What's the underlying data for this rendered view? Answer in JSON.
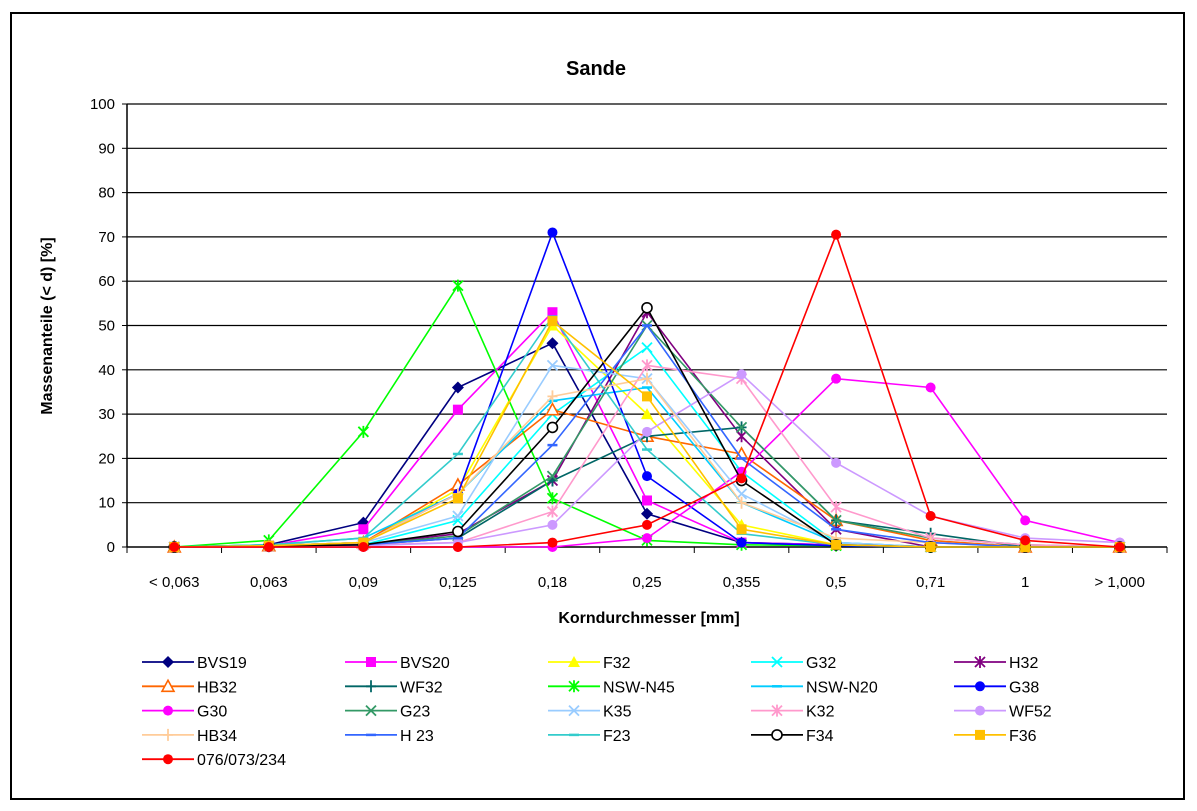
{
  "chart_data": {
    "type": "line",
    "title": "Sande",
    "xlabel": "Korndurchmesser [mm]",
    "ylabel": "Massenanteile (< d) [%]",
    "categories": [
      "< 0,063",
      "0,063",
      "0,09",
      "0,125",
      "0,18",
      "0,25",
      "0,355",
      "0,5",
      "0,71",
      "1",
      "> 1,000"
    ],
    "ylim": [
      0,
      100
    ],
    "yticks": [
      0,
      10,
      20,
      30,
      40,
      50,
      60,
      70,
      80,
      90,
      100
    ],
    "grid": "horizontal",
    "legend_position": "bottom",
    "series": [
      {
        "name": "BVS19",
        "color": "#000080",
        "marker": "diamond",
        "values": [
          0,
          0.5,
          5.5,
          36,
          46,
          7.5,
          1,
          0.5,
          0,
          0,
          0
        ]
      },
      {
        "name": "BVS20",
        "color": "#FF00FF",
        "marker": "square",
        "values": [
          0,
          0.3,
          4,
          31,
          53,
          10.5,
          1,
          0.5,
          0,
          0,
          0
        ]
      },
      {
        "name": "F32",
        "color": "#FFFF00",
        "marker": "triangle",
        "values": [
          0,
          0.3,
          1,
          13,
          50,
          30,
          5,
          0.5,
          0,
          0,
          0
        ]
      },
      {
        "name": "G32",
        "color": "#00FFFF",
        "marker": "x",
        "values": [
          0,
          0.2,
          0.5,
          6,
          30,
          45,
          17,
          1,
          0,
          0,
          0
        ]
      },
      {
        "name": "H32",
        "color": "#800080",
        "marker": "asterisk",
        "values": [
          0,
          0.2,
          0.5,
          3,
          15,
          53,
          25,
          4,
          0,
          0,
          0
        ]
      },
      {
        "name": "HB32",
        "color": "#FF6600",
        "marker": "open-triangle",
        "values": [
          0,
          0.3,
          1,
          14,
          31,
          25,
          21,
          6,
          1.5,
          0,
          0
        ]
      },
      {
        "name": "WF32",
        "color": "#006666",
        "marker": "plus",
        "values": [
          0,
          0.2,
          0.5,
          2,
          15,
          25,
          27,
          6,
          3,
          0,
          0
        ]
      },
      {
        "name": "NSW-N45",
        "color": "#00FF00",
        "marker": "asterisk",
        "values": [
          0,
          1.5,
          26,
          59,
          11,
          1.5,
          0.5,
          0.3,
          0,
          0,
          0
        ]
      },
      {
        "name": "NSW-N20",
        "color": "#00CCFF",
        "marker": "dash",
        "values": [
          0,
          0.5,
          2,
          12,
          33,
          36,
          10,
          1,
          0,
          0,
          0
        ]
      },
      {
        "name": "G38",
        "color": "#0000FF",
        "marker": "circle",
        "values": [
          0,
          0.3,
          1,
          12,
          71,
          16,
          1,
          0.3,
          0,
          0,
          0
        ]
      },
      {
        "name": "G30",
        "color": "#FF00FF",
        "marker": "circle",
        "values": [
          0,
          0,
          0,
          0,
          0,
          2,
          17,
          38,
          36,
          6,
          1
        ]
      },
      {
        "name": "G23",
        "color": "#339966",
        "marker": "x",
        "values": [
          0,
          0.2,
          0.5,
          2.5,
          16,
          50,
          27,
          6,
          2,
          0.5,
          0
        ]
      },
      {
        "name": "K35",
        "color": "#99CCFF",
        "marker": "x",
        "values": [
          0,
          0.3,
          1,
          7,
          41,
          38,
          12,
          1,
          0,
          0,
          0
        ]
      },
      {
        "name": "K32",
        "color": "#FF99CC",
        "marker": "asterisk",
        "values": [
          0,
          0.2,
          0.5,
          1,
          8,
          41,
          38,
          9,
          2,
          0.5,
          0
        ]
      },
      {
        "name": "WF52",
        "color": "#CC99FF",
        "marker": "circle",
        "values": [
          0,
          0.2,
          0.3,
          1,
          5,
          26,
          39,
          19,
          7,
          2,
          1
        ]
      },
      {
        "name": "HB34",
        "color": "#FFCC99",
        "marker": "plus",
        "values": [
          0,
          0.3,
          1,
          12,
          34,
          38,
          10,
          2,
          1,
          0,
          0
        ]
      },
      {
        "name": "H 23",
        "color": "#3366FF",
        "marker": "dash",
        "values": [
          0,
          0.2,
          0.5,
          2,
          23,
          50,
          20,
          4,
          1,
          0,
          0
        ]
      },
      {
        "name": "F23",
        "color": "#33CCCC",
        "marker": "dash",
        "values": [
          0,
          0.5,
          2,
          21,
          52,
          22,
          3,
          0.5,
          0,
          0,
          0
        ]
      },
      {
        "name": "F34",
        "color": "#000000",
        "marker": "open-circle",
        "values": [
          0,
          0.2,
          0.5,
          3.5,
          27,
          54,
          15,
          0.5,
          0,
          0,
          0
        ]
      },
      {
        "name": "F36",
        "color": "#FFC000",
        "marker": "square",
        "values": [
          0,
          0.3,
          1,
          11,
          51,
          34,
          4,
          0.5,
          0,
          0,
          0
        ]
      },
      {
        "name": "076/073/234",
        "color": "#FF0000",
        "marker": "circle",
        "values": [
          0,
          0,
          0,
          0,
          1,
          5,
          15.5,
          70.5,
          7,
          1.5,
          0
        ]
      }
    ]
  }
}
